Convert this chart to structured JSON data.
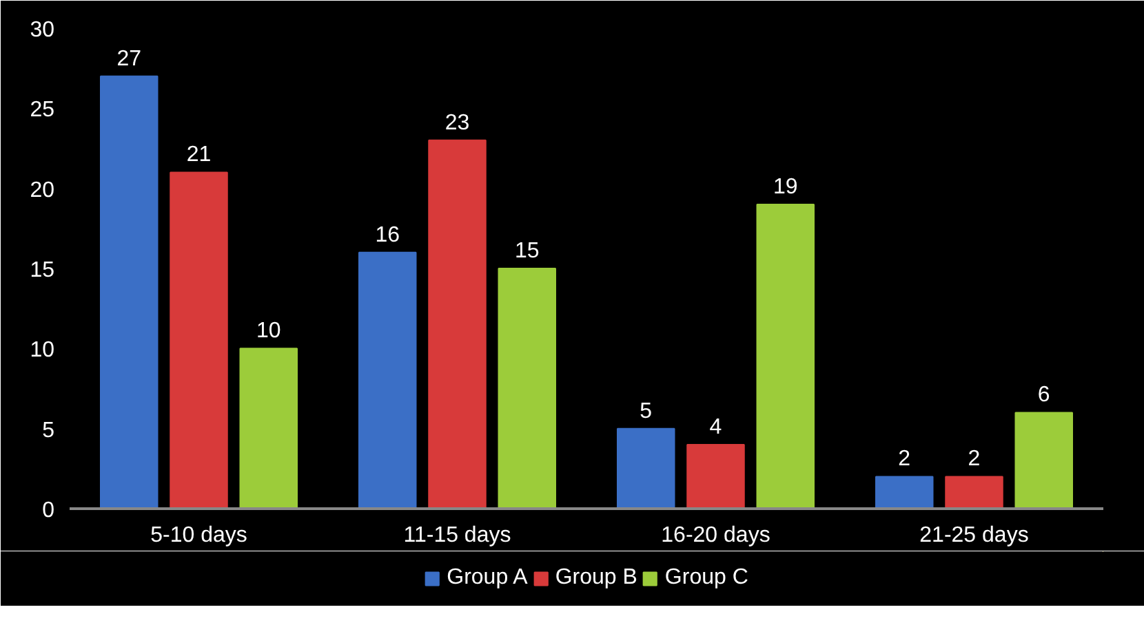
{
  "chart_data": {
    "type": "bar",
    "categories": [
      "5-10 days",
      "11-15 days",
      "16-20 days",
      "21-25 days"
    ],
    "series": [
      {
        "name": "Group A",
        "color": "#3b6fc6",
        "values": [
          27,
          16,
          5,
          2
        ]
      },
      {
        "name": "Group B",
        "color": "#d83a3a",
        "values": [
          21,
          23,
          4,
          2
        ]
      },
      {
        "name": "Group C",
        "color": "#9ccc3a",
        "values": [
          10,
          15,
          19,
          6
        ]
      }
    ],
    "ylim": [
      0,
      30
    ],
    "yticks": [
      0,
      5,
      10,
      15,
      20,
      25,
      30
    ],
    "grid": false,
    "legend": "bottom",
    "data_labels": true
  }
}
